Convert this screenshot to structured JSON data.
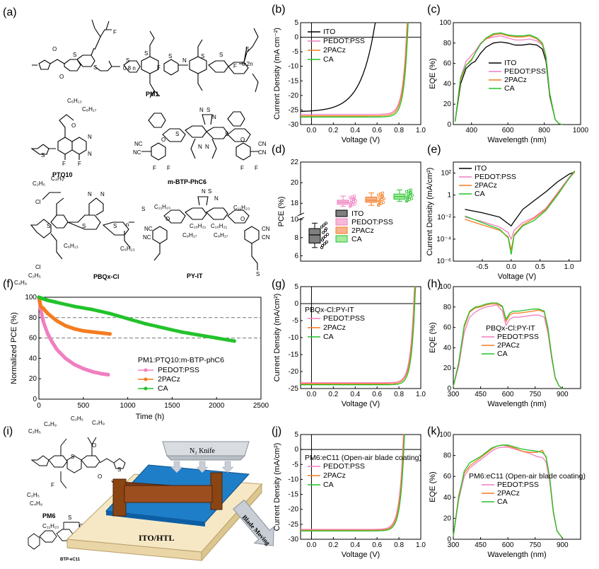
{
  "colors": {
    "ITO": "#000000",
    "PEDOT:PSS": "#f07fc0",
    "2PACz": "#f47c20",
    "CA": "#22c22a",
    "pedot_box": "#f6b8d8",
    "pacz_box": "#f9b38c",
    "ca_box": "#a6eaa0",
    "ito_box": "#7f7f7f"
  },
  "molecules": {
    "a": {
      "label": "(a)",
      "names": [
        "PM1",
        "PTQ10",
        "m-BTP-PhC6",
        "PBQx-Cl",
        "PY-IT"
      ],
      "subs": [
        "0.8 n",
        "0.2n",
        "C₆H₁₃",
        "C₈H₁₇",
        "C₂H₅",
        "C₄H₉",
        "C₆H₁₃",
        "Cl",
        "C₁₁H₂₃",
        "C₁₀H₂₁",
        "C₈H₁₇",
        "F",
        "N",
        "O",
        "S",
        "CN",
        "n"
      ]
    },
    "i": {
      "label": "(i)",
      "names": [
        "PM6",
        "BTP-eC11"
      ],
      "knife": "N₂ Knife",
      "substrate": "ITO/HTL",
      "moving": "Blade Moving"
    }
  },
  "chart_data": [
    {
      "id": "b",
      "label": "(b)",
      "type": "line",
      "xlabel": "Voltage (V)",
      "ylabel": "Current Density (mA cm⁻²)",
      "xlim": [
        -0.1,
        1.0
      ],
      "ylim": [
        -30,
        5
      ],
      "xticks": [
        "0.0",
        "0.2",
        "0.4",
        "0.6",
        "0.8",
        "1.0"
      ],
      "yticks": [
        "5",
        "0",
        "-5",
        "-10",
        "-15",
        "-20",
        "-25",
        "-30"
      ],
      "legend": [
        "ITO",
        "PEDOT:PSS",
        "2PACz",
        "CA"
      ],
      "series": [
        {
          "name": "ITO",
          "jsc": -25.3,
          "voc": 0.56,
          "n": 5
        },
        {
          "name": "PEDOT:PSS",
          "jsc": -26.5,
          "voc": 0.868,
          "n": 1.4
        },
        {
          "name": "2PACz",
          "jsc": -27.0,
          "voc": 0.872,
          "n": 1.4
        },
        {
          "name": "CA",
          "jsc": -27.4,
          "voc": 0.878,
          "n": 1.35
        }
      ]
    },
    {
      "id": "c",
      "label": "(c)",
      "type": "line",
      "xlabel": "Wavelength (nm)",
      "ylabel": "EQE (%)",
      "xlim": [
        300,
        1000
      ],
      "ylim": [
        0,
        100
      ],
      "xticks": [
        "400",
        "600",
        "800",
        "1000"
      ],
      "yticks": [
        "100",
        "80",
        "60",
        "40",
        "20",
        "0"
      ],
      "legend": [
        "ITO",
        "PEDOT:PSS",
        "2PACz",
        "CA"
      ],
      "series": [
        {
          "name": "ITO",
          "x": [
            310,
            340,
            370,
            400,
            420,
            450,
            480,
            520,
            560,
            600,
            640,
            680,
            720,
            760,
            790,
            810,
            830,
            860,
            880,
            900
          ],
          "y": [
            3,
            40,
            55,
            60,
            62,
            70,
            76,
            80,
            81,
            80,
            78,
            78,
            79,
            78,
            74,
            62,
            28,
            5,
            1,
            0
          ]
        },
        {
          "name": "PEDOT:PSS",
          "x": [
            310,
            340,
            370,
            400,
            420,
            450,
            480,
            520,
            560,
            600,
            640,
            680,
            720,
            760,
            790,
            810,
            830,
            860,
            880,
            900
          ],
          "y": [
            3,
            46,
            62,
            68,
            72,
            80,
            84,
            86,
            87,
            85,
            83,
            83,
            84,
            82,
            78,
            65,
            30,
            5,
            1,
            0
          ]
        },
        {
          "name": "2PACz",
          "x": [
            310,
            340,
            370,
            400,
            420,
            450,
            480,
            520,
            560,
            600,
            640,
            680,
            720,
            760,
            790,
            810,
            830,
            860,
            880,
            900
          ],
          "y": [
            3,
            44,
            58,
            64,
            70,
            79,
            84,
            88,
            89,
            87,
            86,
            86,
            87,
            84,
            79,
            66,
            30,
            5,
            1,
            0
          ]
        },
        {
          "name": "CA",
          "x": [
            310,
            340,
            370,
            400,
            420,
            450,
            480,
            520,
            560,
            600,
            640,
            680,
            720,
            760,
            790,
            810,
            830,
            860,
            880,
            900
          ],
          "y": [
            3,
            46,
            58,
            63,
            70,
            79,
            85,
            89,
            90,
            88,
            87,
            87,
            88,
            85,
            80,
            67,
            31,
            5,
            1,
            0
          ]
        }
      ]
    },
    {
      "id": "d",
      "label": "(d)",
      "type": "box",
      "ylabel": "PCE (%)",
      "ybreak": [
        10,
        17
      ],
      "yticks": [
        "22",
        "20",
        "18",
        "10",
        "8",
        "6"
      ],
      "legend": [
        "ITO",
        "PEDOT:PSS",
        "2PACz",
        "CA"
      ],
      "boxes": [
        {
          "name": "ITO",
          "q1": 7.4,
          "median": 8.3,
          "q3": 9.0,
          "min": 6.9,
          "max": 9.6
        },
        {
          "name": "PEDOT:PSS",
          "q1": 17.9,
          "median": 18.1,
          "q3": 18.3,
          "min": 17.7,
          "max": 18.7
        },
        {
          "name": "2PACz",
          "q1": 18.1,
          "median": 18.3,
          "q3": 18.6,
          "min": 17.8,
          "max": 19.0
        },
        {
          "name": "CA",
          "q1": 18.4,
          "median": 18.65,
          "q3": 18.9,
          "min": 18.2,
          "max": 19.3
        }
      ]
    },
    {
      "id": "e",
      "label": "(e)",
      "type": "line",
      "xlabel": "Voltage (V)",
      "ylabel": "Current Density (mA/cm²)",
      "xlim": [
        -1.0,
        1.2
      ],
      "ylim_log": [
        -6,
        3
      ],
      "xticks": [
        "-0.5",
        "0.0",
        "0.5",
        "1.0"
      ],
      "yticks": [
        "10²",
        "1",
        "10⁻²",
        "10⁻⁴",
        "10⁻⁶"
      ],
      "legend": [
        "ITO",
        "PEDOT:PSS",
        "2PACz",
        "CA"
      ],
      "series": [
        {
          "name": "ITO",
          "x": [
            -0.8,
            -0.5,
            -0.2,
            -0.05,
            0,
            0.05,
            0.2,
            0.4,
            0.6,
            0.8,
            1.0,
            1.1
          ],
          "logy": [
            -1.3,
            -1.6,
            -2.0,
            -2.6,
            -2.8,
            -2.4,
            -1.3,
            -0.5,
            0.3,
            1.2,
            1.9,
            2.1
          ]
        },
        {
          "name": "PEDOT:PSS",
          "x": [
            -0.8,
            -0.5,
            -0.2,
            -0.05,
            0,
            0.05,
            0.2,
            0.4,
            0.6,
            0.8,
            1.0,
            1.1
          ],
          "logy": [
            -2.0,
            -2.4,
            -2.9,
            -3.4,
            -4.0,
            -3.2,
            -2.5,
            -2.0,
            -1.2,
            0.2,
            1.6,
            2.2
          ]
        },
        {
          "name": "2PACz",
          "x": [
            -0.8,
            -0.5,
            -0.2,
            -0.05,
            0,
            0.05,
            0.2,
            0.4,
            0.6,
            0.8,
            1.0,
            1.1
          ],
          "logy": [
            -2.2,
            -2.7,
            -3.2,
            -3.8,
            -5.0,
            -3.6,
            -2.7,
            -2.1,
            -1.3,
            0.1,
            1.5,
            2.1
          ]
        },
        {
          "name": "CA",
          "x": [
            -0.8,
            -0.5,
            -0.2,
            -0.05,
            0,
            0.05,
            0.2,
            0.4,
            0.6,
            0.8,
            1.0,
            1.1
          ],
          "logy": [
            -1.9,
            -2.5,
            -3.1,
            -3.9,
            -5.4,
            -3.7,
            -2.8,
            -2.3,
            -1.4,
            0.0,
            1.5,
            2.2
          ]
        }
      ]
    },
    {
      "id": "f",
      "label": "(f)",
      "type": "scatter-line",
      "xlabel": "Time (h)",
      "ylabel": "Normalized PCE (%)",
      "xlim": [
        0,
        2500
      ],
      "ylim": [
        0,
        100
      ],
      "xticks": [
        "0",
        "500",
        "1000",
        "1500",
        "2000",
        "2500"
      ],
      "yticks": [
        "100",
        "80",
        "60",
        "40",
        "20",
        "0"
      ],
      "refs": [
        80,
        60
      ],
      "legend_title": "PM1:PTQ10:m-BTP-phC6",
      "legend": [
        "PEDOT:PSS",
        "2PACz",
        "CA"
      ],
      "series": [
        {
          "name": "PEDOT:PSS",
          "x": [
            0,
            20,
            50,
            100,
            150,
            200,
            300,
            400,
            500,
            600,
            700,
            780
          ],
          "y": [
            100,
            88,
            76,
            64,
            56,
            49,
            40,
            34,
            30,
            27,
            25,
            24
          ]
        },
        {
          "name": "2PACz",
          "x": [
            0,
            20,
            50,
            100,
            200,
            300,
            400,
            500,
            600,
            700,
            800
          ],
          "y": [
            100,
            91,
            89,
            84,
            77,
            72,
            69,
            67,
            66,
            65,
            64
          ]
        },
        {
          "name": "CA",
          "x": [
            0,
            100,
            200,
            400,
            600,
            800,
            1000,
            1200,
            1400,
            1600,
            1800,
            2000,
            2200
          ],
          "y": [
            100,
            97,
            95,
            91,
            88,
            84,
            79,
            74,
            70,
            66,
            63,
            60,
            57
          ]
        }
      ]
    },
    {
      "id": "g",
      "label": "(g)",
      "type": "line",
      "title": "PBQx-Cl:PY-IT",
      "xlabel": "Voltage (V)",
      "ylabel": "Current Density (mA/cm²)",
      "xlim": [
        -0.1,
        1.0
      ],
      "ylim": [
        -25,
        5
      ],
      "xticks": [
        "0.0",
        "0.2",
        "0.4",
        "0.6",
        "0.8",
        "1.0"
      ],
      "yticks": [
        "5",
        "0",
        "-5",
        "-10",
        "-15",
        "-20",
        "-25"
      ],
      "legend": [
        "PEDOT:PSS",
        "2PACz",
        "CA"
      ],
      "series": [
        {
          "name": "PEDOT:PSS",
          "jsc": -23.3,
          "voc": 0.935,
          "n": 1.3
        },
        {
          "name": "2PACz",
          "jsc": -23.6,
          "voc": 0.94,
          "n": 1.3
        },
        {
          "name": "CA",
          "jsc": -23.9,
          "voc": 0.945,
          "n": 1.25
        }
      ]
    },
    {
      "id": "h",
      "label": "(h)",
      "type": "line",
      "title": "PBQx-Cl:PY-IT",
      "xlabel": "Wavelength (nm)",
      "ylabel": "EQE (%)",
      "xlim": [
        300,
        1000
      ],
      "ylim": [
        0,
        100
      ],
      "xticks": [
        "300",
        "450",
        "600",
        "750",
        "900"
      ],
      "yticks": [
        "100",
        "80",
        "60",
        "40",
        "20",
        "0"
      ],
      "legend": [
        "PEDOT:PSS",
        "2PACz",
        "CA"
      ],
      "series": [
        {
          "name": "PEDOT:PSS",
          "x": [
            300,
            330,
            360,
            390,
            420,
            450,
            480,
            510,
            540,
            570,
            590,
            610,
            630,
            660,
            700,
            740,
            770,
            800,
            820,
            840,
            860,
            880,
            900
          ],
          "y": [
            2,
            22,
            55,
            70,
            75,
            78,
            80,
            81,
            82,
            76,
            62,
            68,
            70,
            70,
            71,
            72,
            72,
            70,
            55,
            30,
            10,
            3,
            0
          ]
        },
        {
          "name": "2PACz",
          "x": [
            300,
            330,
            360,
            390,
            420,
            450,
            480,
            510,
            540,
            570,
            590,
            610,
            630,
            660,
            700,
            740,
            770,
            800,
            820,
            840,
            860,
            880,
            900
          ],
          "y": [
            2,
            25,
            60,
            75,
            79,
            80,
            82,
            83,
            83,
            80,
            66,
            72,
            74,
            74,
            75,
            76,
            77,
            75,
            58,
            32,
            11,
            3,
            0
          ]
        },
        {
          "name": "CA",
          "x": [
            300,
            330,
            360,
            390,
            420,
            450,
            480,
            510,
            540,
            570,
            590,
            610,
            630,
            660,
            700,
            740,
            770,
            800,
            820,
            840,
            860,
            880,
            900
          ],
          "y": [
            2,
            26,
            62,
            76,
            80,
            81,
            83,
            84,
            84,
            81,
            68,
            74,
            76,
            76,
            77,
            78,
            78,
            76,
            60,
            33,
            11,
            3,
            0
          ]
        }
      ]
    },
    {
      "id": "j",
      "label": "(j)",
      "type": "line",
      "title": "PM6:eC11 (Open-air blade coating)",
      "xlabel": "Voltage (V)",
      "ylabel": "Current Density (mA/cm²)",
      "xlim": [
        -0.1,
        1.0
      ],
      "ylim": [
        -30,
        5
      ],
      "xticks": [
        "0.0",
        "0.2",
        "0.4",
        "0.6",
        "0.8",
        "1.0"
      ],
      "yticks": [
        "5",
        "0",
        "-5",
        "-10",
        "-15",
        "-20",
        "-25",
        "-30"
      ],
      "legend": [
        "PEDOT:PSS",
        "2PACz",
        "CA"
      ],
      "series": [
        {
          "name": "PEDOT:PSS",
          "jsc": -26.7,
          "voc": 0.835,
          "n": 1.35
        },
        {
          "name": "2PACz",
          "jsc": -27.0,
          "voc": 0.84,
          "n": 1.35
        },
        {
          "name": "CA",
          "jsc": -27.2,
          "voc": 0.845,
          "n": 1.3
        }
      ]
    },
    {
      "id": "k",
      "label": "(k)",
      "type": "line",
      "title": "PM6:eC11 (Open-air blade coating)",
      "xlabel": "Wavelength (nm)",
      "ylabel": "EQE (%)",
      "xlim": [
        300,
        1000
      ],
      "ylim": [
        0,
        100
      ],
      "xticks": [
        "300",
        "450",
        "600",
        "750",
        "900"
      ],
      "yticks": [
        "100",
        "80",
        "60",
        "40",
        "20",
        "0"
      ],
      "legend": [
        "PEDOT:PSS",
        "2PACz",
        "CA"
      ],
      "series": [
        {
          "name": "PEDOT:PSS",
          "x": [
            300,
            330,
            360,
            390,
            420,
            450,
            480,
            510,
            540,
            570,
            600,
            640,
            680,
            720,
            760,
            790,
            810,
            830,
            850,
            870,
            900
          ],
          "y": [
            3,
            38,
            60,
            68,
            72,
            76,
            80,
            84,
            87,
            88,
            88,
            86,
            84,
            82,
            79,
            78,
            74,
            55,
            25,
            8,
            1
          ]
        },
        {
          "name": "2PACz",
          "x": [
            300,
            330,
            360,
            390,
            420,
            450,
            480,
            510,
            540,
            570,
            600,
            640,
            680,
            720,
            760,
            790,
            810,
            830,
            850,
            870,
            900
          ],
          "y": [
            3,
            42,
            63,
            70,
            74,
            78,
            82,
            86,
            89,
            90,
            89,
            87,
            84,
            83,
            83,
            85,
            78,
            58,
            26,
            8,
            1
          ]
        },
        {
          "name": "CA",
          "x": [
            300,
            330,
            360,
            390,
            420,
            450,
            480,
            510,
            540,
            570,
            600,
            640,
            680,
            720,
            760,
            790,
            810,
            830,
            850,
            870,
            900
          ],
          "y": [
            3,
            40,
            65,
            73,
            76,
            79,
            83,
            87,
            89,
            90,
            90,
            88,
            86,
            85,
            84,
            83,
            79,
            59,
            27,
            8,
            1
          ]
        }
      ]
    }
  ]
}
